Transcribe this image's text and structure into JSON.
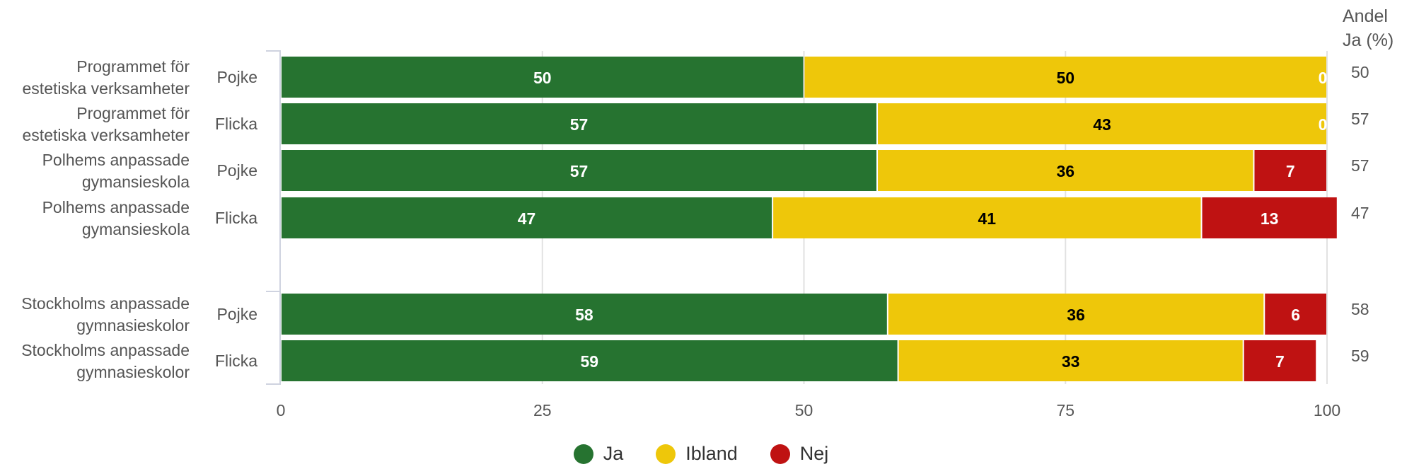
{
  "chart_data": {
    "type": "bar",
    "orientation": "horizontal",
    "stacked": true,
    "right_header": "Andel\nJa (%)",
    "xlim": [
      0,
      100
    ],
    "xticks": [
      "0",
      "25",
      "50",
      "75",
      "100"
    ],
    "grid": true,
    "legend_position": "bottom-center",
    "rows": [
      {
        "group": "Programmet för\nestetiska verksamheter",
        "category": "Pojke",
        "values": [
          50,
          50,
          0
        ],
        "labels": [
          "50",
          "50",
          "0"
        ],
        "andel": "50"
      },
      {
        "group": "Programmet för\nestetiska verksamheter",
        "category": "Flicka",
        "values": [
          57,
          43,
          0
        ],
        "labels": [
          "57",
          "43",
          "0"
        ],
        "andel": "57"
      },
      {
        "group": "Polhems anpassade\ngymansieskola",
        "category": "Pojke",
        "values": [
          57,
          36,
          7
        ],
        "labels": [
          "57",
          "36",
          "7"
        ],
        "andel": "57"
      },
      {
        "group": "Polhems anpassade\ngymansieskola",
        "category": "Flicka",
        "values": [
          47,
          41,
          13
        ],
        "labels": [
          "47",
          "41",
          "13"
        ],
        "andel": "47"
      },
      {
        "group": "Stockholms anpassade\ngymnasieskolor",
        "category": "Pojke",
        "values": [
          58,
          36,
          6
        ],
        "labels": [
          "58",
          "36",
          "6"
        ],
        "andel": "58"
      },
      {
        "group": "Stockholms anpassade\ngymnasieskolor",
        "category": "Flicka",
        "values": [
          59,
          33,
          7
        ],
        "labels": [
          "59",
          "33",
          "7"
        ],
        "andel": "59"
      }
    ],
    "series": [
      {
        "name": "Ja",
        "color": "#267330"
      },
      {
        "name": "Ibland",
        "color": "#eec70a"
      },
      {
        "name": "Nej",
        "color": "#bf1212"
      }
    ]
  }
}
